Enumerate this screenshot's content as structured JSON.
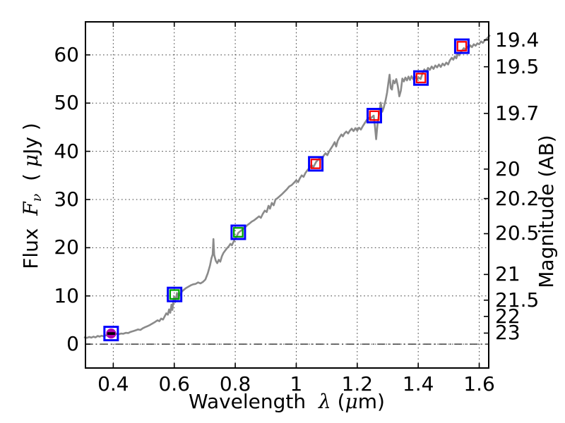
{
  "figure": {
    "background": "#ffffff"
  },
  "chart_data": {
    "type": "line",
    "title": "",
    "xlabel_parts": [
      {
        "text": "Wavelength  ",
        "style": "plain"
      },
      {
        "text": "λ",
        "style": "mathit"
      },
      {
        "text": " (",
        "style": "plain"
      },
      {
        "text": "μ",
        "style": "mathit"
      },
      {
        "text": "m)",
        "style": "plain"
      }
    ],
    "ylabel_left_parts": [
      {
        "text": "Flux  ",
        "style": "plain"
      },
      {
        "text": "F",
        "style": "mathit"
      },
      {
        "text": "ν",
        "style": "mathsub"
      },
      {
        "text": "  ( ",
        "style": "plain"
      },
      {
        "text": "μ",
        "style": "mathit"
      },
      {
        "text": "Jy )",
        "style": "plain"
      }
    ],
    "ylabel_right": "Magnitude (AB)",
    "xlim": [
      0.3065,
      1.6335
    ],
    "ylim": [
      -5.1,
      67.0
    ],
    "grid": {
      "linestyle": "dotted",
      "color": "#3c3c3c"
    },
    "axis_color": "#000000",
    "x_ticks": [
      {
        "value": 0.4,
        "label": "0.4"
      },
      {
        "value": 0.6,
        "label": "0.6"
      },
      {
        "value": 0.8,
        "label": "0.8"
      },
      {
        "value": 1.0,
        "label": "1"
      },
      {
        "value": 1.2,
        "label": "1.2"
      },
      {
        "value": 1.4,
        "label": "1.4"
      },
      {
        "value": 1.6,
        "label": "1.6"
      }
    ],
    "flux_ticks": [
      {
        "value": 0,
        "label": "0"
      },
      {
        "value": 10,
        "label": "10"
      },
      {
        "value": 20,
        "label": "20"
      },
      {
        "value": 30,
        "label": "30"
      },
      {
        "value": 40,
        "label": "40"
      },
      {
        "value": 50,
        "label": "50"
      },
      {
        "value": 60,
        "label": "60"
      }
    ],
    "mag_ticks": [
      {
        "label": "19.4",
        "flux": 63.1
      },
      {
        "label": "19.5",
        "flux": 57.54
      },
      {
        "label": "19.7",
        "flux": 47.86
      },
      {
        "label": "20",
        "flux": 36.31
      },
      {
        "label": "20.2",
        "flux": 30.2
      },
      {
        "label": "20.5",
        "flux": 22.91
      },
      {
        "label": "21",
        "flux": 14.45
      },
      {
        "label": "21.5",
        "flux": 9.12
      },
      {
        "label": "22",
        "flux": 5.75
      },
      {
        "label": "23",
        "flux": 2.29
      }
    ],
    "zero_line": {
      "flux": 0,
      "linestyle": "dashdot",
      "color": "#1a1a1a"
    },
    "spectrum": {
      "name": "observed-spectrum",
      "color": "#8a8a8a",
      "linewidth": 2.6,
      "points": [
        [
          0.3065,
          1.4
        ],
        [
          0.314,
          1.3
        ],
        [
          0.321,
          1.5
        ],
        [
          0.328,
          1.35
        ],
        [
          0.335,
          1.55
        ],
        [
          0.342,
          1.4
        ],
        [
          0.349,
          1.7
        ],
        [
          0.355,
          1.55
        ],
        [
          0.362,
          1.75
        ],
        [
          0.369,
          1.6
        ],
        [
          0.376,
          1.85
        ],
        [
          0.383,
          1.75
        ],
        [
          0.39,
          1.95
        ],
        [
          0.397,
          2.05
        ],
        [
          0.404,
          1.95
        ],
        [
          0.411,
          2.15
        ],
        [
          0.418,
          2.05
        ],
        [
          0.425,
          2.2
        ],
        [
          0.433,
          2.15
        ],
        [
          0.441,
          2.35
        ],
        [
          0.449,
          2.3
        ],
        [
          0.457,
          2.55
        ],
        [
          0.465,
          2.7
        ],
        [
          0.473,
          2.85
        ],
        [
          0.481,
          3.05
        ],
        [
          0.489,
          2.95
        ],
        [
          0.497,
          3.3
        ],
        [
          0.505,
          3.55
        ],
        [
          0.513,
          3.75
        ],
        [
          0.521,
          4.0
        ],
        [
          0.529,
          4.3
        ],
        [
          0.537,
          4.6
        ],
        [
          0.545,
          4.95
        ],
        [
          0.551,
          4.75
        ],
        [
          0.557,
          5.3
        ],
        [
          0.563,
          5.1
        ],
        [
          0.569,
          5.8
        ],
        [
          0.574,
          6.4
        ],
        [
          0.579,
          6.1
        ],
        [
          0.583,
          7.2
        ],
        [
          0.587,
          6.5
        ],
        [
          0.591,
          8.2
        ],
        [
          0.594,
          7.1
        ],
        [
          0.597,
          8.9
        ],
        [
          0.6,
          9.9
        ],
        [
          0.603,
          8.7
        ],
        [
          0.606,
          9.5
        ],
        [
          0.609,
          10.6
        ],
        [
          0.612,
          9.3
        ],
        [
          0.616,
          10.7
        ],
        [
          0.62,
          10.1
        ],
        [
          0.625,
          10.9
        ],
        [
          0.63,
          11.2
        ],
        [
          0.638,
          11.6
        ],
        [
          0.646,
          11.9
        ],
        [
          0.654,
          12.2
        ],
        [
          0.662,
          12.4
        ],
        [
          0.67,
          12.5
        ],
        [
          0.678,
          12.8
        ],
        [
          0.686,
          12.6
        ],
        [
          0.694,
          12.9
        ],
        [
          0.702,
          13.4
        ],
        [
          0.71,
          14.7
        ],
        [
          0.717,
          16.3
        ],
        [
          0.722,
          17.8
        ],
        [
          0.726,
          18.6
        ],
        [
          0.7285,
          21.8
        ],
        [
          0.731,
          18.5
        ],
        [
          0.736,
          17.3
        ],
        [
          0.741,
          16.8
        ],
        [
          0.746,
          17.5
        ],
        [
          0.751,
          17.1
        ],
        [
          0.756,
          18.2
        ],
        [
          0.761,
          18.9
        ],
        [
          0.767,
          19.4
        ],
        [
          0.773,
          19.9
        ],
        [
          0.779,
          20.3
        ],
        [
          0.784,
          20.8
        ],
        [
          0.789,
          20.5
        ],
        [
          0.794,
          21.2
        ],
        [
          0.8,
          21.9
        ],
        [
          0.805,
          22.4
        ],
        [
          0.81,
          23.1
        ],
        [
          0.816,
          23.4
        ],
        [
          0.822,
          23.7
        ],
        [
          0.83,
          24.1
        ],
        [
          0.838,
          24.6
        ],
        [
          0.846,
          25.0
        ],
        [
          0.854,
          25.4
        ],
        [
          0.862,
          25.7
        ],
        [
          0.87,
          26.1
        ],
        [
          0.878,
          26.5
        ],
        [
          0.884,
          26.2
        ],
        [
          0.89,
          27.0
        ],
        [
          0.897,
          27.7
        ],
        [
          0.903,
          27.4
        ],
        [
          0.909,
          28.7
        ],
        [
          0.914,
          28.1
        ],
        [
          0.92,
          29.3
        ],
        [
          0.926,
          28.8
        ],
        [
          0.932,
          30.0
        ],
        [
          0.939,
          30.3
        ],
        [
          0.946,
          30.7
        ],
        [
          0.953,
          31.1
        ],
        [
          0.961,
          31.6
        ],
        [
          0.969,
          32.1
        ],
        [
          0.977,
          32.7
        ],
        [
          0.985,
          33.0
        ],
        [
          0.993,
          33.5
        ],
        [
          1.0,
          34.0
        ],
        [
          1.006,
          33.6
        ],
        [
          1.012,
          34.4
        ],
        [
          1.018,
          35.0
        ],
        [
          1.024,
          34.7
        ],
        [
          1.03,
          35.5
        ],
        [
          1.037,
          36.1
        ],
        [
          1.044,
          36.6
        ],
        [
          1.05,
          37.2
        ],
        [
          1.056,
          36.7
        ],
        [
          1.061,
          37.3
        ],
        [
          1.066,
          37.9
        ],
        [
          1.072,
          38.2
        ],
        [
          1.078,
          38.7
        ],
        [
          1.084,
          38.3
        ],
        [
          1.09,
          39.1
        ],
        [
          1.096,
          39.6
        ],
        [
          1.102,
          39.2
        ],
        [
          1.108,
          40.0
        ],
        [
          1.114,
          40.6
        ],
        [
          1.12,
          41.2
        ],
        [
          1.126,
          41.9
        ],
        [
          1.131,
          41.0
        ],
        [
          1.136,
          42.2
        ],
        [
          1.142,
          42.9
        ],
        [
          1.148,
          43.5
        ],
        [
          1.153,
          43.1
        ],
        [
          1.158,
          43.7
        ],
        [
          1.164,
          44.1
        ],
        [
          1.17,
          43.7
        ],
        [
          1.176,
          44.3
        ],
        [
          1.182,
          44.7
        ],
        [
          1.188,
          44.2
        ],
        [
          1.194,
          44.8
        ],
        [
          1.2,
          44.3
        ],
        [
          1.206,
          44.9
        ],
        [
          1.212,
          44.5
        ],
        [
          1.218,
          45.2
        ],
        [
          1.224,
          45.8
        ],
        [
          1.23,
          46.4
        ],
        [
          1.236,
          47.0
        ],
        [
          1.242,
          46.6
        ],
        [
          1.248,
          47.1
        ],
        [
          1.254,
          47.4
        ],
        [
          1.258,
          45.2
        ],
        [
          1.262,
          42.5
        ],
        [
          1.267,
          45.9
        ],
        [
          1.272,
          47.9
        ],
        [
          1.277,
          50.1
        ],
        [
          1.282,
          48.2
        ],
        [
          1.287,
          49.1
        ],
        [
          1.293,
          50.6
        ],
        [
          1.298,
          52.2
        ],
        [
          1.302,
          54.2
        ],
        [
          1.306,
          55.9
        ],
        [
          1.31,
          53.1
        ],
        [
          1.314,
          52.8
        ],
        [
          1.318,
          54.7
        ],
        [
          1.323,
          54.1
        ],
        [
          1.328,
          55.0
        ],
        [
          1.333,
          53.6
        ],
        [
          1.338,
          51.4
        ],
        [
          1.343,
          52.6
        ],
        [
          1.348,
          55.1
        ],
        [
          1.353,
          54.5
        ],
        [
          1.358,
          55.3
        ],
        [
          1.363,
          54.7
        ],
        [
          1.368,
          55.5
        ],
        [
          1.373,
          54.8
        ],
        [
          1.378,
          55.6
        ],
        [
          1.384,
          54.9
        ],
        [
          1.39,
          55.5
        ],
        [
          1.396,
          54.9
        ],
        [
          1.402,
          55.3
        ],
        [
          1.408,
          55.0
        ],
        [
          1.414,
          56.2
        ],
        [
          1.42,
          57.0
        ],
        [
          1.426,
          56.5
        ],
        [
          1.432,
          57.3
        ],
        [
          1.438,
          56.9
        ],
        [
          1.444,
          57.6
        ],
        [
          1.45,
          57.1
        ],
        [
          1.456,
          57.8
        ],
        [
          1.462,
          57.4
        ],
        [
          1.468,
          58.0
        ],
        [
          1.474,
          57.5
        ],
        [
          1.48,
          58.2
        ],
        [
          1.486,
          57.8
        ],
        [
          1.492,
          58.4
        ],
        [
          1.498,
          58.0
        ],
        [
          1.504,
          58.9
        ],
        [
          1.51,
          59.4
        ],
        [
          1.515,
          59.0
        ],
        [
          1.52,
          59.7
        ],
        [
          1.525,
          59.3
        ],
        [
          1.53,
          60.2
        ],
        [
          1.535,
          59.9
        ],
        [
          1.54,
          60.6
        ],
        [
          1.545,
          61.0
        ],
        [
          1.55,
          61.4
        ],
        [
          1.555,
          61.0
        ],
        [
          1.56,
          61.7
        ],
        [
          1.565,
          61.3
        ],
        [
          1.57,
          62.0
        ],
        [
          1.576,
          61.6
        ],
        [
          1.582,
          62.2
        ],
        [
          1.588,
          61.9
        ],
        [
          1.594,
          62.4
        ],
        [
          1.6,
          62.2
        ],
        [
          1.606,
          62.8
        ],
        [
          1.612,
          62.5
        ],
        [
          1.618,
          63.0
        ],
        [
          1.624,
          63.3
        ],
        [
          1.63,
          63.7
        ],
        [
          1.634,
          64.0
        ]
      ]
    },
    "photometry": {
      "outer_marker": {
        "shape": "open-square",
        "color": "#0000ff",
        "size": 19,
        "stroke": 3
      },
      "inner_marker_stroke": 2.3,
      "inner_marker_size": 12.5,
      "points": [
        {
          "wavelength": 0.393,
          "flux": 2.2,
          "mag_ab": 23.04,
          "inner": "filled-circle",
          "color": "#b000b0",
          "errorbar_color": "#000000"
        },
        {
          "wavelength": 0.601,
          "flux": 10.3,
          "mag_ab": 21.37,
          "inner": "open-square",
          "color": "#00a500"
        },
        {
          "wavelength": 0.81,
          "flux": 23.2,
          "mag_ab": 20.49,
          "inner": "open-square",
          "color": "#00a500"
        },
        {
          "wavelength": 1.064,
          "flux": 37.4,
          "mag_ab": 19.97,
          "inner": "open-square",
          "color": "#ff0000"
        },
        {
          "wavelength": 1.256,
          "flux": 47.4,
          "mag_ab": 19.71,
          "inner": "open-square",
          "color": "#ff0000"
        },
        {
          "wavelength": 1.409,
          "flux": 55.2,
          "mag_ab": 19.55,
          "inner": "open-square",
          "color": "#ff0000"
        },
        {
          "wavelength": 1.543,
          "flux": 61.8,
          "mag_ab": 19.42,
          "inner": "open-square",
          "color": "#ff0000"
        }
      ]
    }
  }
}
